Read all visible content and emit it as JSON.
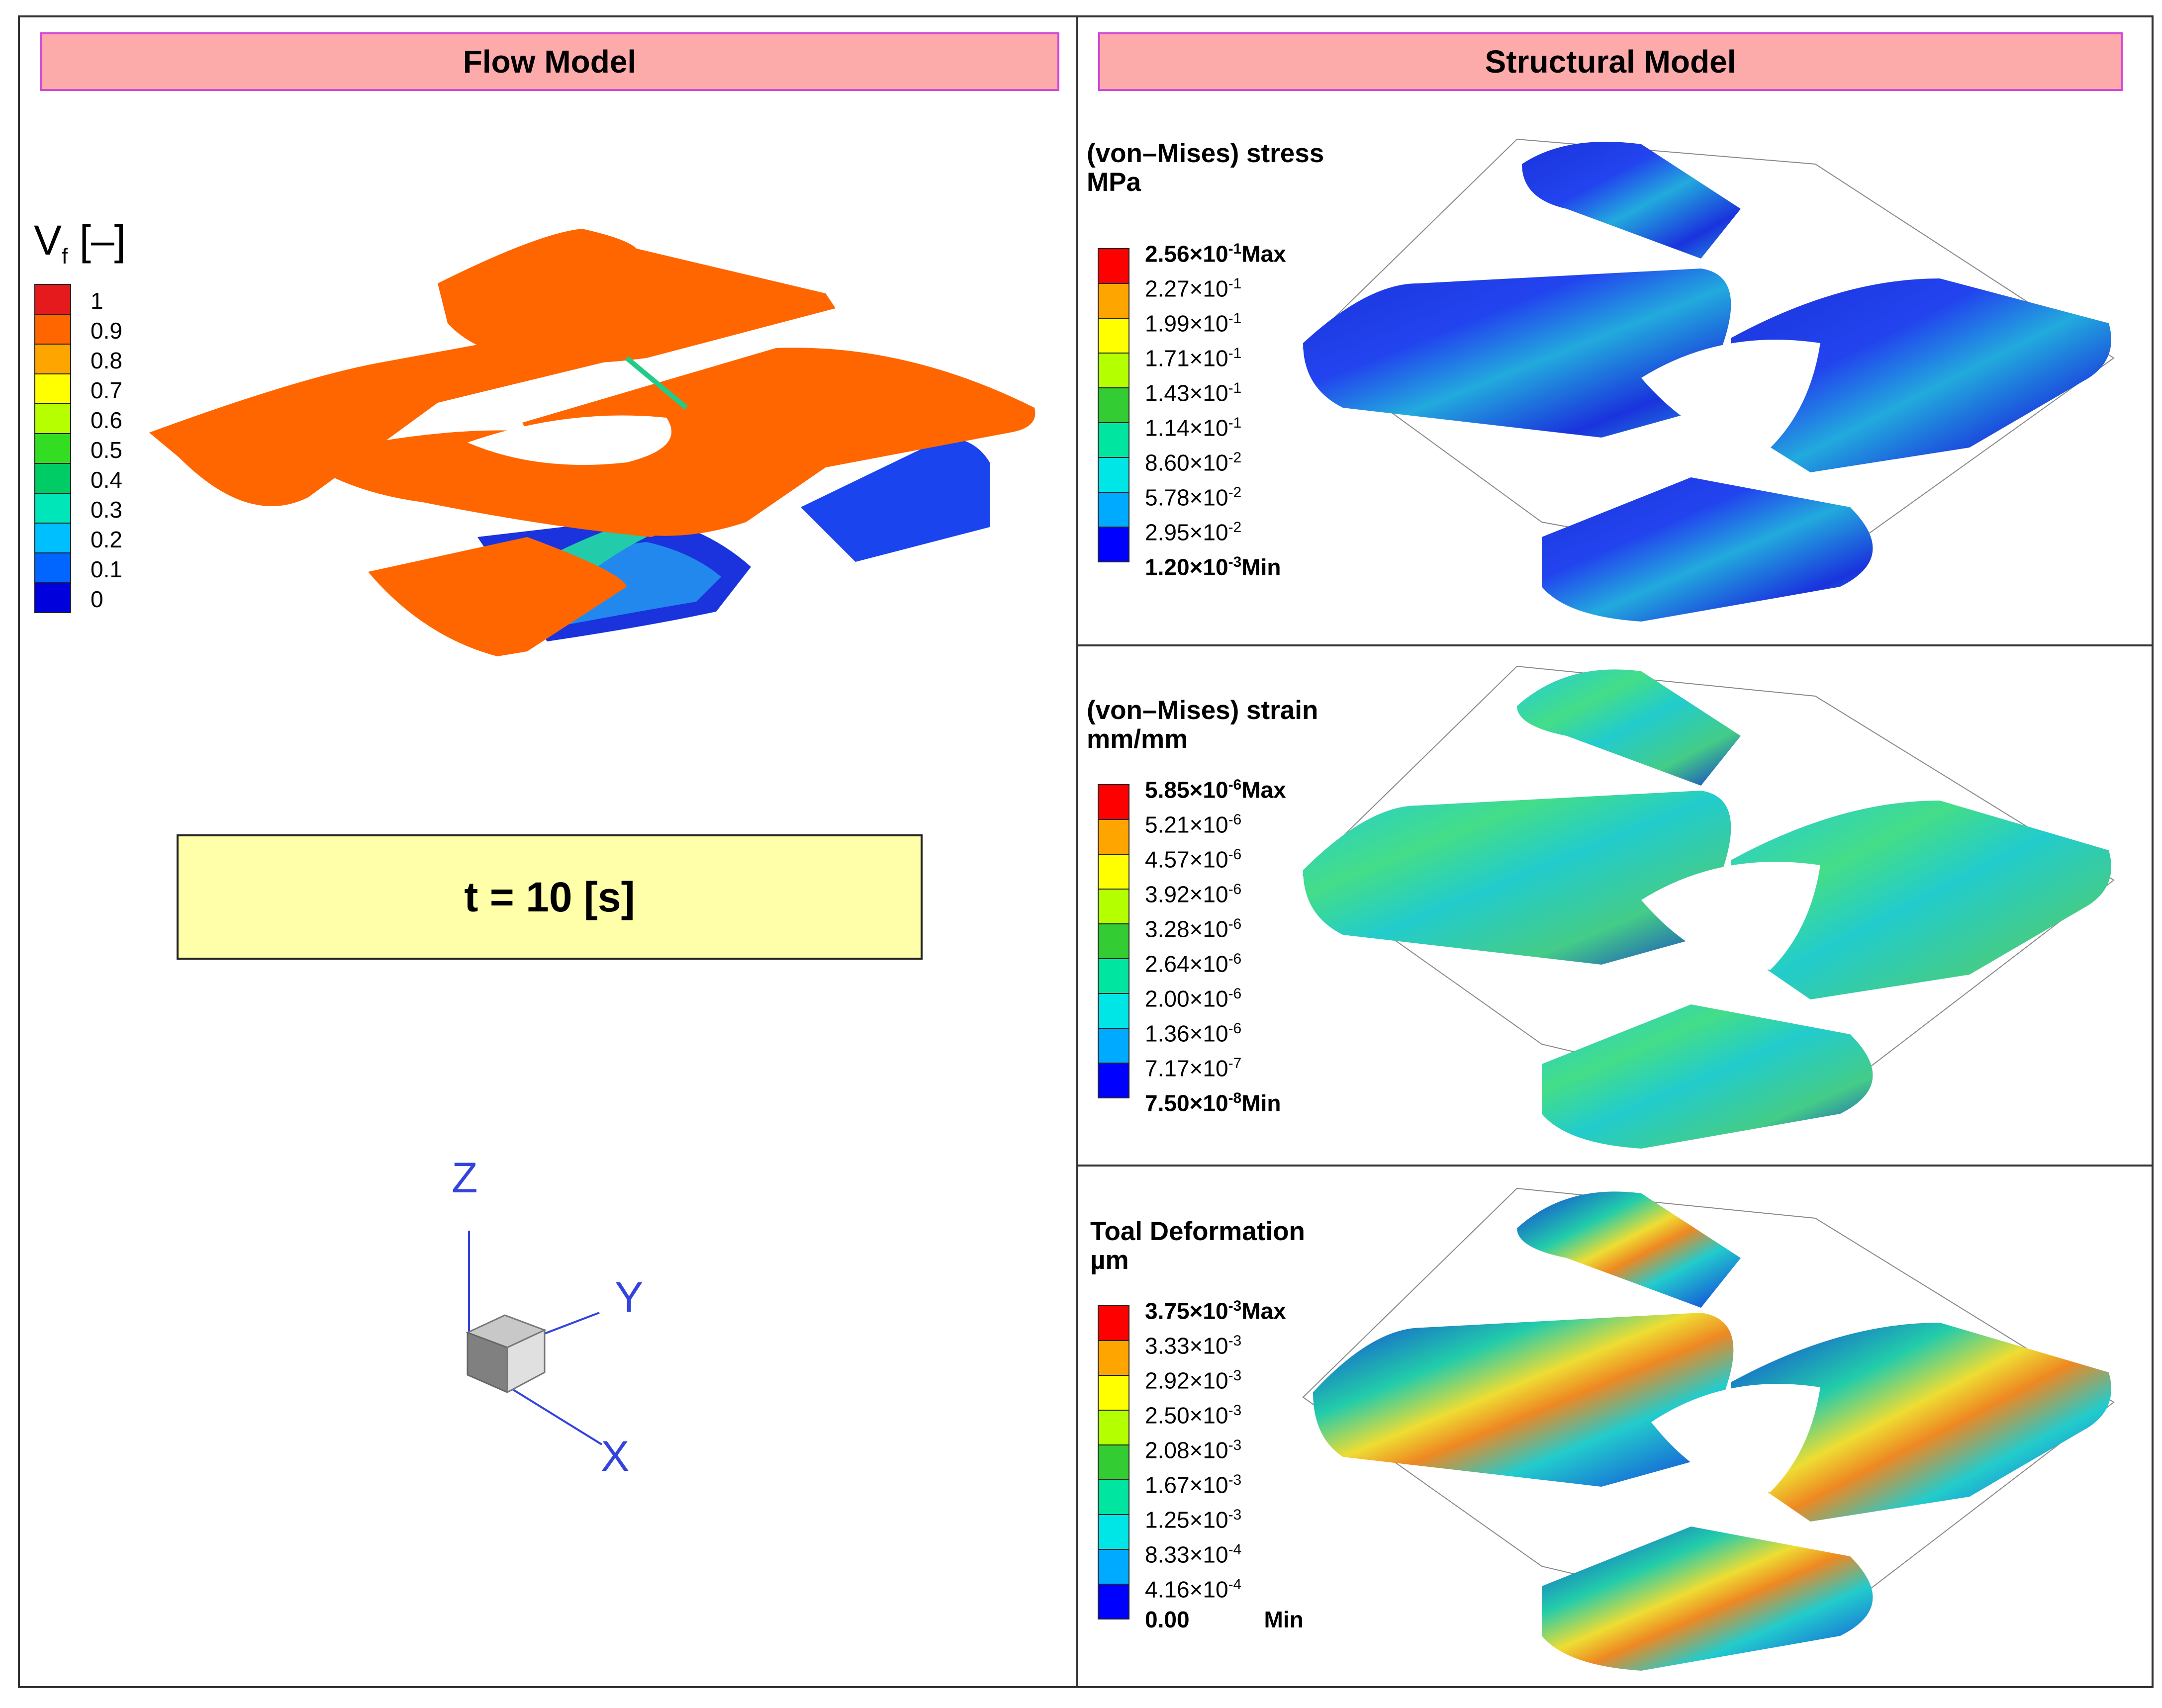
{
  "flow": {
    "header": "Flow Model",
    "legend_title": "V",
    "legend_subscript": "f",
    "legend_units": "[–]",
    "legend_ticks": [
      "1",
      "0.9",
      "0.8",
      "0.7",
      "0.6",
      "0.5",
      "0.4",
      "0.3",
      "0.2",
      "0.1",
      "0"
    ],
    "time_label": "t = 10 [s]",
    "axes": {
      "z": "Z",
      "y": "Y",
      "x": "X"
    }
  },
  "structural": {
    "header": "Structural Model",
    "panels": [
      {
        "title": "(von–Mises) stress",
        "units": "MPa",
        "ticks": [
          {
            "mant": "2.56",
            "exp": "-1",
            "suffix": "Max"
          },
          {
            "mant": "2.27",
            "exp": "-1",
            "suffix": ""
          },
          {
            "mant": "1.99",
            "exp": "-1",
            "suffix": ""
          },
          {
            "mant": "1.71",
            "exp": "-1",
            "suffix": ""
          },
          {
            "mant": "1.43",
            "exp": "-1",
            "suffix": ""
          },
          {
            "mant": "1.14",
            "exp": "-1",
            "suffix": ""
          },
          {
            "mant": "8.60",
            "exp": "-2",
            "suffix": ""
          },
          {
            "mant": "5.78",
            "exp": "-2",
            "suffix": ""
          },
          {
            "mant": "2.95",
            "exp": "-2",
            "suffix": ""
          },
          {
            "mant": "1.20",
            "exp": "-3",
            "suffix": "Min"
          }
        ]
      },
      {
        "title": "(von–Mises) strain",
        "units": "mm/mm",
        "ticks": [
          {
            "mant": "5.85",
            "exp": "-6",
            "suffix": "Max"
          },
          {
            "mant": "5.21",
            "exp": "-6",
            "suffix": ""
          },
          {
            "mant": "4.57",
            "exp": "-6",
            "suffix": ""
          },
          {
            "mant": "3.92",
            "exp": "-6",
            "suffix": ""
          },
          {
            "mant": "3.28",
            "exp": "-6",
            "suffix": ""
          },
          {
            "mant": "2.64",
            "exp": "-6",
            "suffix": ""
          },
          {
            "mant": "2.00",
            "exp": "-6",
            "suffix": ""
          },
          {
            "mant": "1.36",
            "exp": "-6",
            "suffix": ""
          },
          {
            "mant": "7.17",
            "exp": "-7",
            "suffix": ""
          },
          {
            "mant": "7.50",
            "exp": "-8",
            "suffix": "Min"
          }
        ]
      },
      {
        "title": "Toal Deformation",
        "units": "µm",
        "ticks": [
          {
            "mant": "3.75",
            "exp": "-3",
            "suffix": "Max"
          },
          {
            "mant": "3.33",
            "exp": "-3",
            "suffix": ""
          },
          {
            "mant": "2.92",
            "exp": "-3",
            "suffix": ""
          },
          {
            "mant": "2.50",
            "exp": "-3",
            "suffix": ""
          },
          {
            "mant": "2.08",
            "exp": "-3",
            "suffix": ""
          },
          {
            "mant": "1.67",
            "exp": "-3",
            "suffix": ""
          },
          {
            "mant": "1.25",
            "exp": "-3",
            "suffix": ""
          },
          {
            "mant": "8.33",
            "exp": "-4",
            "suffix": ""
          },
          {
            "mant": "4.16",
            "exp": "-4",
            "suffix": ""
          },
          {
            "mant": "0.00",
            "exp": "",
            "suffix": "Min"
          }
        ]
      }
    ]
  },
  "colors": {
    "flow_scale": [
      "#e41a1c",
      "#ff6600",
      "#ffa500",
      "#ffff00",
      "#b6ff00",
      "#33dd22",
      "#00cc66",
      "#00e6b8",
      "#00bfff",
      "#0066ff",
      "#0000dd"
    ],
    "structural_scale": [
      "#ff0000",
      "#ffa500",
      "#ffff00",
      "#b4ff00",
      "#33cc33",
      "#00e6a0",
      "#00e6e6",
      "#00aaff",
      "#0000ff"
    ],
    "header_fill": "#fdaaaa",
    "header_border": "#d04ad6",
    "time_box_fill": "#ffffaa",
    "axis_color": "#3344dd"
  }
}
